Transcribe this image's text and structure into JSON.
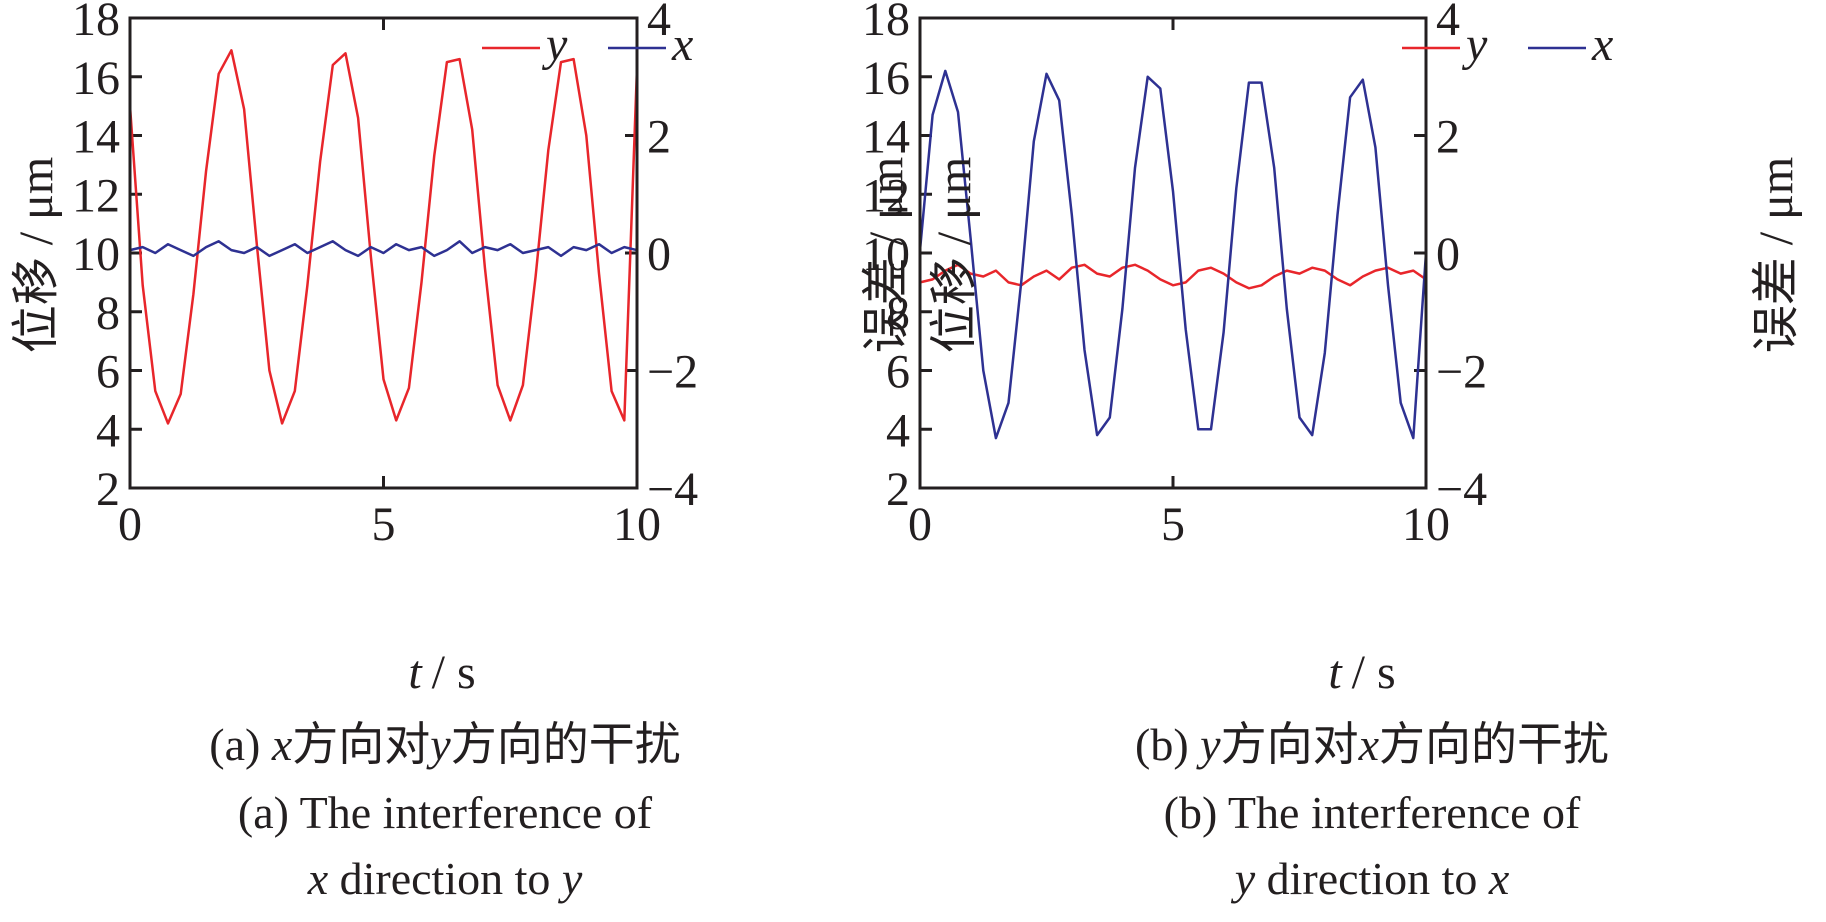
{
  "chart_data": [
    {
      "type": "line",
      "panel": "(a)",
      "x": [
        0,
        0.25,
        0.5,
        0.75,
        1,
        1.25,
        1.5,
        1.75,
        2,
        2.25,
        2.5,
        2.75,
        3,
        3.25,
        3.5,
        3.75,
        4,
        4.25,
        4.5,
        4.75,
        5,
        5.25,
        5.5,
        5.75,
        6,
        6.25,
        6.5,
        6.75,
        7,
        7.25,
        7.5,
        7.75,
        8,
        8.25,
        8.5,
        8.75,
        9,
        9.25,
        9.5,
        9.75,
        10
      ],
      "series": [
        {
          "name": "y",
          "axis": "left",
          "color": "#e8262b",
          "values": [
            15.0,
            8.9,
            5.3,
            4.2,
            5.2,
            8.6,
            12.8,
            16.1,
            16.9,
            14.9,
            10.3,
            6.0,
            4.2,
            5.3,
            8.9,
            13.1,
            16.4,
            16.8,
            14.6,
            9.9,
            5.7,
            4.3,
            5.4,
            9.0,
            13.3,
            16.5,
            16.6,
            14.2,
            9.5,
            5.5,
            4.3,
            5.5,
            9.2,
            13.5,
            16.5,
            16.6,
            14.0,
            9.3,
            5.3,
            4.3,
            16.3
          ]
        },
        {
          "name": "x",
          "axis": "right",
          "color": "#2e3192",
          "values": [
            0.05,
            0.1,
            0.0,
            0.15,
            0.05,
            -0.05,
            0.1,
            0.2,
            0.05,
            0.0,
            0.1,
            -0.05,
            0.05,
            0.15,
            0.0,
            0.1,
            0.2,
            0.05,
            -0.05,
            0.1,
            0.0,
            0.15,
            0.05,
            0.1,
            -0.05,
            0.05,
            0.2,
            0.0,
            0.1,
            0.05,
            0.15,
            0.0,
            0.05,
            0.1,
            -0.05,
            0.1,
            0.05,
            0.15,
            0.0,
            0.1,
            0.05
          ]
        }
      ],
      "xlabel_var": "t",
      "xlabel_unit": "/ s",
      "ylabel": "位移 / μm",
      "ylabel2": "误差 / μm",
      "xlim": [
        0,
        10
      ],
      "ylim": [
        2,
        18
      ],
      "y2lim": [
        -4,
        4
      ],
      "xticks": [
        "0",
        "5",
        "10"
      ],
      "yticks": [
        "2",
        "4",
        "6",
        "8",
        "10",
        "12",
        "14",
        "16",
        "18"
      ],
      "y2ticks": [
        "−4",
        "−2",
        "0",
        "2",
        "4"
      ],
      "legend": "top-right",
      "caption_cn_pre": "(a) ",
      "caption_cn_v1": "x",
      "caption_cn_mid": "方向对",
      "caption_cn_v2": "y",
      "caption_cn_post": "方向的干扰",
      "caption_en_line1": "(a) The interference of",
      "caption_en_v1": "x",
      "caption_en_mid": " direction to ",
      "caption_en_v2": "y"
    },
    {
      "type": "line",
      "panel": "(b)",
      "x": [
        0,
        0.25,
        0.5,
        0.75,
        1,
        1.25,
        1.5,
        1.75,
        2,
        2.25,
        2.5,
        2.75,
        3,
        3.25,
        3.5,
        3.75,
        4,
        4.25,
        4.5,
        4.75,
        5,
        5.25,
        5.5,
        5.75,
        6,
        6.25,
        6.5,
        6.75,
        7,
        7.25,
        7.5,
        7.75,
        8,
        8.25,
        8.5,
        8.75,
        9,
        9.25,
        9.5,
        9.75,
        10
      ],
      "series": [
        {
          "name": "y",
          "axis": "right",
          "color": "#e8262b",
          "values": [
            -0.5,
            -0.45,
            -0.3,
            -0.2,
            -0.35,
            -0.4,
            -0.3,
            -0.5,
            -0.55,
            -0.4,
            -0.3,
            -0.45,
            -0.25,
            -0.2,
            -0.35,
            -0.4,
            -0.25,
            -0.2,
            -0.3,
            -0.45,
            -0.55,
            -0.5,
            -0.3,
            -0.25,
            -0.35,
            -0.5,
            -0.6,
            -0.55,
            -0.4,
            -0.3,
            -0.35,
            -0.25,
            -0.3,
            -0.45,
            -0.55,
            -0.4,
            -0.3,
            -0.25,
            -0.35,
            -0.3,
            -0.45
          ]
        },
        {
          "name": "x",
          "axis": "left",
          "color": "#2e3192",
          "values": [
            10.1,
            14.7,
            16.2,
            14.8,
            10.5,
            6.0,
            3.7,
            4.9,
            9.0,
            13.8,
            16.1,
            15.2,
            11.3,
            6.7,
            3.8,
            4.4,
            8.1,
            12.9,
            16.0,
            15.6,
            12.1,
            7.4,
            4.0,
            4.0,
            7.3,
            12.2,
            15.8,
            15.8,
            12.9,
            8.1,
            4.4,
            3.8,
            6.6,
            11.3,
            15.3,
            15.9,
            13.6,
            8.9,
            4.9,
            3.7,
            10.0
          ]
        }
      ],
      "xlabel_var": "t",
      "xlabel_unit": "/ s",
      "ylabel": "位移 / μm",
      "ylabel2": "误差 / μm",
      "xlim": [
        0,
        10
      ],
      "ylim": [
        2,
        18
      ],
      "y2lim": [
        -4,
        4
      ],
      "xticks": [
        "0",
        "5",
        "10"
      ],
      "yticks": [
        "2",
        "4",
        "6",
        "8",
        "10",
        "12",
        "14",
        "16",
        "18"
      ],
      "y2ticks": [
        "−4",
        "−2",
        "0",
        "2",
        "4"
      ],
      "legend": "top-right",
      "caption_cn_pre": "(b) ",
      "caption_cn_v1": "y",
      "caption_cn_mid": "方向对",
      "caption_cn_v2": "x",
      "caption_cn_post": "方向的干扰",
      "caption_en_line1": "(b) The interference of",
      "caption_en_v1": "y",
      "caption_en_mid": " direction to ",
      "caption_en_v2": "x"
    }
  ]
}
